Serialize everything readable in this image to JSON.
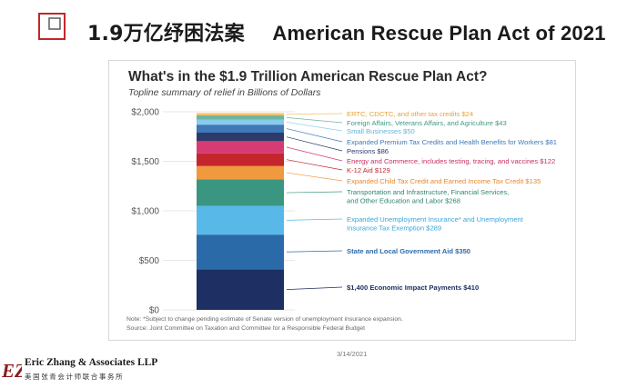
{
  "slide": {
    "title_cn": "1.9万亿纾困法案",
    "title_en": "American Rescue Plan Act of 2021",
    "date": "3/14/2021",
    "firm_name": "Eric Zhang & Associates LLP",
    "firm_name_cn": "美国张青会计师联合事务所",
    "logo_letters": "EZ",
    "accent_color": "#c0272d"
  },
  "chart_data": {
    "type": "bar",
    "stacked": true,
    "title": "What's in the $1.9 Trillion American Rescue Plan Act?",
    "subtitle": "Topline summary of relief in Billions of Dollars",
    "ylim": [
      0,
      2000
    ],
    "yticks": [
      {
        "value": 0,
        "label": "$0"
      },
      {
        "value": 500,
        "label": "$500"
      },
      {
        "value": 1000,
        "label": "$1,000"
      },
      {
        "value": 1500,
        "label": "$1,500"
      },
      {
        "value": 2000,
        "label": "$2,000"
      }
    ],
    "grid": true,
    "series": [
      {
        "lines": [
          "$1,400 Economic Impact Payments $410"
        ],
        "value": 410,
        "color": "#1e2f63",
        "text_color": "#1e2f63"
      },
      {
        "lines": [
          "State and Local Government Aid $350"
        ],
        "value": 350,
        "color": "#2b6aa9",
        "text_color": "#2b6aa9"
      },
      {
        "lines": [
          "Expanded Unemployment Insurance* and Unemployment",
          "Insurance Tax Exemption $289"
        ],
        "value": 289,
        "color": "#58b9e8",
        "text_color": "#3aa6db"
      },
      {
        "lines": [
          "Transportation and Infrastructure, Financial Services,",
          "and Other Education and Labor $268"
        ],
        "value": 268,
        "color": "#3a9680",
        "text_color": "#2f8570"
      },
      {
        "lines": [
          "Expanded Child Tax Credit and Earned Income Tax Credit $135"
        ],
        "value": 135,
        "color": "#f0993e",
        "text_color": "#e8882b"
      },
      {
        "lines": [
          "K-12 Aid $129"
        ],
        "value": 129,
        "color": "#c4262e",
        "text_color": "#c4262e"
      },
      {
        "lines": [
          "Energy and Commerce, includes testing, tracing, and vaccines $122"
        ],
        "value": 122,
        "color": "#d63b73",
        "text_color": "#c82e62"
      },
      {
        "lines": [
          "Pensions $86"
        ],
        "value": 86,
        "color": "#2c3b6c",
        "text_color": "#2c3b6c"
      },
      {
        "lines": [
          "Expanded Premium Tax Credits and Health Benefits for Workers $81"
        ],
        "value": 81,
        "color": "#3f79b8",
        "text_color": "#3f79b8"
      },
      {
        "lines": [
          "Small Businesses $50"
        ],
        "value": 50,
        "color": "#86cdeb",
        "text_color": "#5fb4de"
      },
      {
        "lines": [
          "Foreign Affairs, Veterans Affairs, and Agriculture $43"
        ],
        "value": 43,
        "color": "#6fb5a0",
        "text_color": "#3f9a84"
      },
      {
        "lines": [
          "ERTC, CDCTC, and other tax credits $24"
        ],
        "value": 24,
        "color": "#f5c36b",
        "text_color": "#e9a23b"
      }
    ],
    "notes": [
      "Note: *Subject to change pending estimate of Senate version of unemployment insurance expansion.",
      "Source: Joint Committee on Taxation and Committee for a Responsible Federal Budget"
    ]
  }
}
